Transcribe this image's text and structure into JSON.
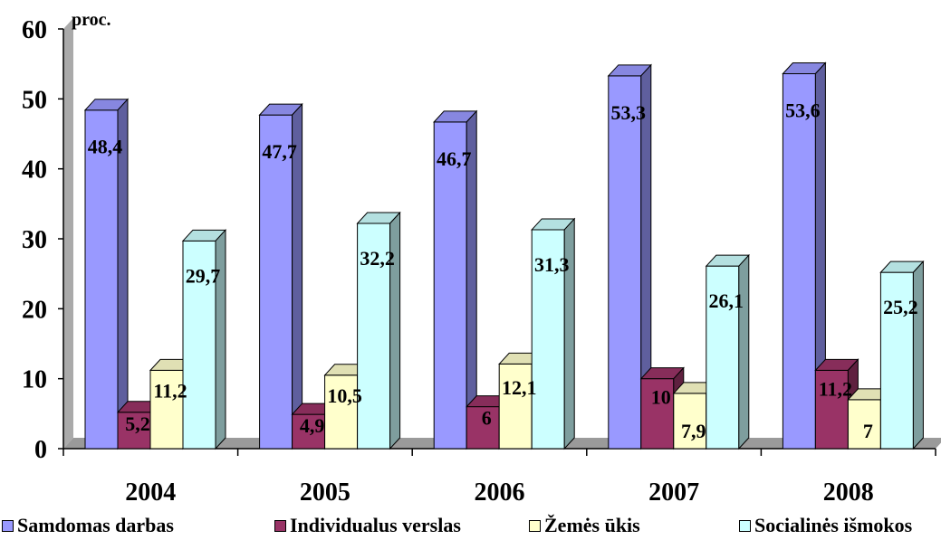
{
  "chart_data": {
    "type": "bar",
    "ylabel": "proc.",
    "ylim": [
      0,
      60
    ],
    "yticks": [
      "0",
      "10",
      "20",
      "30",
      "40",
      "50",
      "60"
    ],
    "categories": [
      "2004",
      "2005",
      "2006",
      "2007",
      "2008"
    ],
    "series": [
      {
        "name": "Samdomas darbas",
        "values": [
          48.4,
          47.7,
          46.7,
          53.3,
          53.6
        ],
        "labels": [
          "48,4",
          "47,7",
          "46,7",
          "53,3",
          "53,6"
        ],
        "color": "#9999ff"
      },
      {
        "name": "Individualus verslas",
        "values": [
          5.2,
          4.9,
          6,
          10,
          11.2
        ],
        "labels": [
          "5,2",
          "4,9",
          "6",
          "10",
          "11,2"
        ],
        "color": "#993366"
      },
      {
        "name": "Žemės ūkis",
        "values": [
          11.2,
          10.5,
          12.1,
          7.9,
          7
        ],
        "labels": [
          "11,2",
          "10,5",
          "12,1",
          "7,9",
          "7"
        ],
        "color": "#ffffcc"
      },
      {
        "name": "Socialinės išmokos",
        "values": [
          29.7,
          32.2,
          31.3,
          26.1,
          25.2
        ],
        "labels": [
          "29,7",
          "32,2",
          "31,3",
          "26,1",
          "25,2"
        ],
        "color": "#ccffff"
      }
    ],
    "grid": false,
    "legend": "bottom"
  }
}
